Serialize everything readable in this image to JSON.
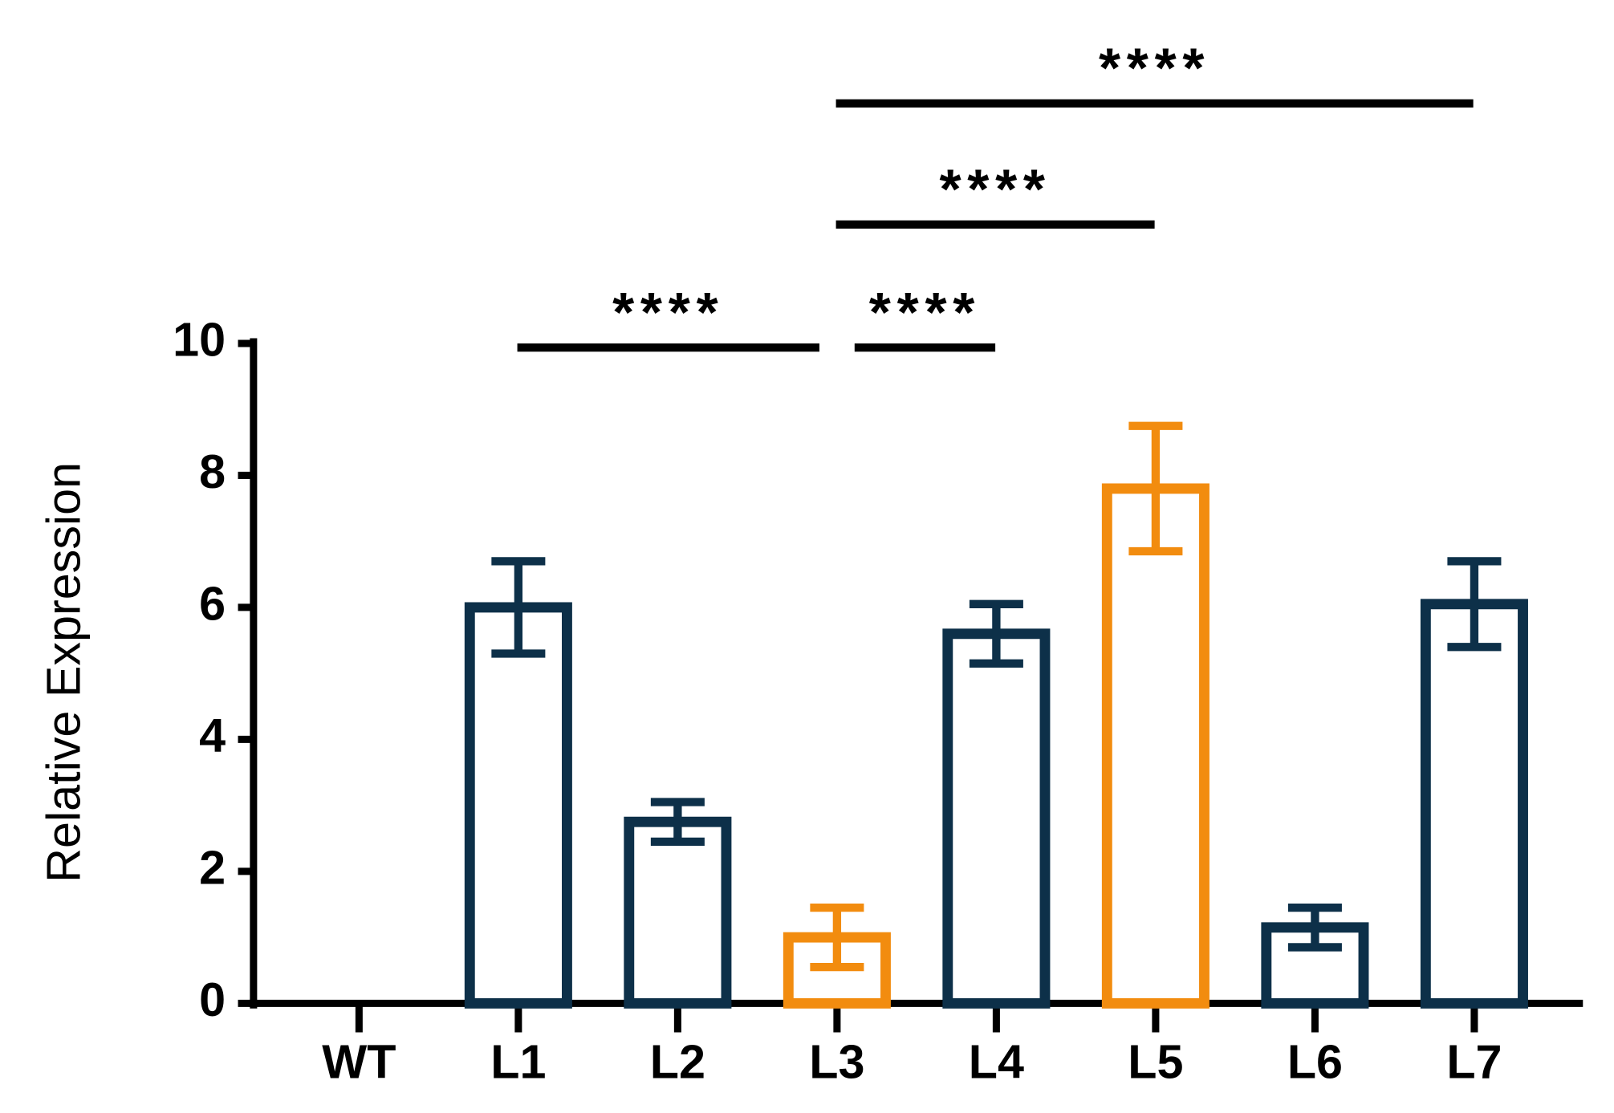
{
  "chart_data": {
    "type": "bar",
    "y_label": "Relative Expression",
    "categories": [
      "WT",
      "L1",
      "L2",
      "L3",
      "L4",
      "L5",
      "L6",
      "L7"
    ],
    "values": [
      0,
      6.0,
      2.75,
      1.0,
      5.6,
      7.8,
      1.15,
      6.05
    ],
    "errors": [
      0,
      0.7,
      0.3,
      0.45,
      0.45,
      0.95,
      0.3,
      0.65
    ],
    "colors": [
      "#0d3049",
      "#0d3049",
      "#0d3049",
      "#f28c0f",
      "#0d3049",
      "#f28c0f",
      "#0d3049",
      "#0d3049"
    ],
    "ylim": [
      0,
      10
    ],
    "yticks": [
      0,
      2,
      4,
      6,
      8,
      10
    ],
    "annotations": [
      "****",
      "****",
      "****",
      "****"
    ]
  }
}
